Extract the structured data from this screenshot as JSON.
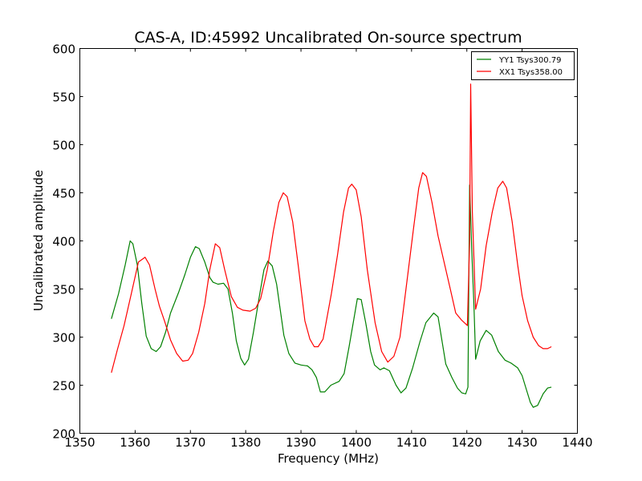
{
  "chart_data": {
    "type": "line",
    "title": "CAS-A, ID:45992 Uncalibrated On-source spectrum",
    "xlabel": "Frequency (MHz)",
    "ylabel": "Uncalibrated amplitude",
    "xlim": [
      1350,
      1440
    ],
    "ylim": [
      200,
      600
    ],
    "xticks": [
      "1350",
      "1360",
      "1370",
      "1380",
      "1390",
      "1400",
      "1410",
      "1420",
      "1430",
      "1440"
    ],
    "yticks": [
      "200",
      "250",
      "300",
      "350",
      "400",
      "450",
      "500",
      "550",
      "600"
    ],
    "grid": false,
    "legend_position": "top-right",
    "series": [
      {
        "name": "YY1 Tsys300.79",
        "color": "#008000",
        "points": [
          [
            1355.7,
            319
          ],
          [
            1357.0,
            345
          ],
          [
            1358.2,
            375
          ],
          [
            1359.1,
            400
          ],
          [
            1359.6,
            397
          ],
          [
            1360.4,
            375
          ],
          [
            1361.2,
            335
          ],
          [
            1362.0,
            301
          ],
          [
            1362.9,
            288
          ],
          [
            1363.8,
            285
          ],
          [
            1364.6,
            290
          ],
          [
            1365.5,
            305
          ],
          [
            1366.4,
            325
          ],
          [
            1367.9,
            347
          ],
          [
            1369.0,
            365
          ],
          [
            1370.0,
            383
          ],
          [
            1370.9,
            394
          ],
          [
            1371.6,
            392
          ],
          [
            1372.6,
            378
          ],
          [
            1373.5,
            362
          ],
          [
            1374.1,
            357
          ],
          [
            1375.0,
            355
          ],
          [
            1376.0,
            356
          ],
          [
            1376.8,
            350
          ],
          [
            1377.6,
            325
          ],
          [
            1378.3,
            296
          ],
          [
            1379.1,
            278
          ],
          [
            1379.8,
            271
          ],
          [
            1380.5,
            277
          ],
          [
            1381.4,
            305
          ],
          [
            1382.4,
            340
          ],
          [
            1383.3,
            370
          ],
          [
            1384.0,
            379
          ],
          [
            1384.8,
            374
          ],
          [
            1385.6,
            355
          ],
          [
            1386.9,
            302
          ],
          [
            1387.8,
            283
          ],
          [
            1388.9,
            273
          ],
          [
            1390.0,
            271
          ],
          [
            1391.2,
            270
          ],
          [
            1392.0,
            266
          ],
          [
            1392.8,
            258
          ],
          [
            1393.5,
            243
          ],
          [
            1394.3,
            243
          ],
          [
            1395.4,
            250
          ],
          [
            1396.9,
            254
          ],
          [
            1397.8,
            262
          ],
          [
            1398.7,
            290
          ],
          [
            1399.6,
            320
          ],
          [
            1400.2,
            340
          ],
          [
            1400.9,
            339
          ],
          [
            1401.7,
            315
          ],
          [
            1402.6,
            285
          ],
          [
            1403.3,
            271
          ],
          [
            1404.3,
            266
          ],
          [
            1405.0,
            268
          ],
          [
            1406.0,
            265
          ],
          [
            1407.2,
            250
          ],
          [
            1408.1,
            242
          ],
          [
            1409.0,
            247
          ],
          [
            1410.2,
            268
          ],
          [
            1411.5,
            295
          ],
          [
            1412.6,
            315
          ],
          [
            1414.0,
            325
          ],
          [
            1414.8,
            321
          ],
          [
            1416.2,
            272
          ],
          [
            1417.3,
            258
          ],
          [
            1418.3,
            247
          ],
          [
            1419.1,
            242
          ],
          [
            1419.8,
            241
          ],
          [
            1420.2,
            248
          ],
          [
            1420.5,
            458
          ],
          [
            1420.9,
            390
          ],
          [
            1421.3,
            330
          ],
          [
            1421.6,
            277
          ],
          [
            1422.4,
            296
          ],
          [
            1423.5,
            307
          ],
          [
            1424.5,
            302
          ],
          [
            1425.7,
            285
          ],
          [
            1426.9,
            276
          ],
          [
            1428.0,
            273
          ],
          [
            1429.2,
            268
          ],
          [
            1430.0,
            260
          ],
          [
            1430.8,
            245
          ],
          [
            1431.5,
            232
          ],
          [
            1432.0,
            227
          ],
          [
            1432.8,
            229
          ],
          [
            1433.8,
            241
          ],
          [
            1434.6,
            247
          ],
          [
            1435.3,
            248
          ]
        ]
      },
      {
        "name": "XX1 Tsys358.00",
        "color": "#ff0000",
        "points": [
          [
            1355.7,
            263
          ],
          [
            1356.8,
            287
          ],
          [
            1358.0,
            312
          ],
          [
            1359.3,
            345
          ],
          [
            1360.6,
            378
          ],
          [
            1361.8,
            383
          ],
          [
            1362.6,
            375
          ],
          [
            1363.6,
            350
          ],
          [
            1364.4,
            332
          ],
          [
            1365.3,
            317
          ],
          [
            1366.4,
            297
          ],
          [
            1367.5,
            283
          ],
          [
            1368.6,
            275
          ],
          [
            1369.6,
            276
          ],
          [
            1370.4,
            283
          ],
          [
            1371.5,
            305
          ],
          [
            1372.6,
            335
          ],
          [
            1373.5,
            370
          ],
          [
            1374.5,
            397
          ],
          [
            1375.3,
            393
          ],
          [
            1376.2,
            370
          ],
          [
            1377.4,
            342
          ],
          [
            1378.5,
            331
          ],
          [
            1379.5,
            328
          ],
          [
            1380.8,
            327
          ],
          [
            1381.8,
            330
          ],
          [
            1382.7,
            340
          ],
          [
            1383.9,
            370
          ],
          [
            1385.0,
            410
          ],
          [
            1386.0,
            440
          ],
          [
            1386.8,
            450
          ],
          [
            1387.5,
            446
          ],
          [
            1388.5,
            420
          ],
          [
            1389.6,
            370
          ],
          [
            1390.7,
            317
          ],
          [
            1391.6,
            298
          ],
          [
            1392.4,
            290
          ],
          [
            1393.1,
            290
          ],
          [
            1394.0,
            298
          ],
          [
            1395.5,
            345
          ],
          [
            1396.6,
            385
          ],
          [
            1397.7,
            430
          ],
          [
            1398.6,
            455
          ],
          [
            1399.2,
            459
          ],
          [
            1400.0,
            453
          ],
          [
            1400.9,
            425
          ],
          [
            1402.0,
            370
          ],
          [
            1403.4,
            315
          ],
          [
            1404.6,
            285
          ],
          [
            1405.7,
            274
          ],
          [
            1406.8,
            280
          ],
          [
            1407.9,
            300
          ],
          [
            1409.0,
            350
          ],
          [
            1410.4,
            415
          ],
          [
            1411.3,
            455
          ],
          [
            1412.0,
            471
          ],
          [
            1412.7,
            467
          ],
          [
            1413.7,
            440
          ],
          [
            1414.8,
            405
          ],
          [
            1416.0,
            375
          ],
          [
            1417.0,
            350
          ],
          [
            1418.0,
            325
          ],
          [
            1419.0,
            318
          ],
          [
            1420.1,
            312
          ],
          [
            1420.5,
            400
          ],
          [
            1420.7,
            563
          ],
          [
            1421.0,
            430
          ],
          [
            1421.6,
            329
          ],
          [
            1422.5,
            350
          ],
          [
            1423.5,
            395
          ],
          [
            1424.6,
            430
          ],
          [
            1425.6,
            455
          ],
          [
            1426.5,
            462
          ],
          [
            1427.2,
            455
          ],
          [
            1428.2,
            420
          ],
          [
            1429.2,
            375
          ],
          [
            1430.0,
            343
          ],
          [
            1431.0,
            317
          ],
          [
            1432.0,
            300
          ],
          [
            1433.0,
            291
          ],
          [
            1433.8,
            288
          ],
          [
            1434.6,
            288
          ],
          [
            1435.3,
            290
          ]
        ]
      }
    ]
  }
}
